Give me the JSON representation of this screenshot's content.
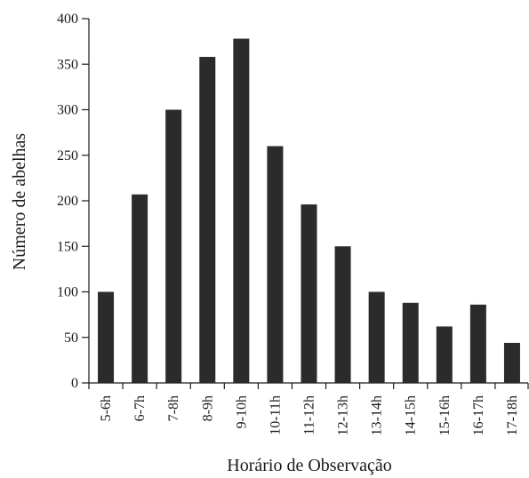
{
  "chart_data": {
    "type": "bar",
    "title": "",
    "xlabel": "Horário de Observação",
    "ylabel": "Número de abelhas",
    "categories": [
      "5-6h",
      "6-7h",
      "7-8h",
      "8-9h",
      "9-10h",
      "10-11h",
      "11-12h",
      "12-13h",
      "13-14h",
      "14-15h",
      "15-16h",
      "16-17h",
      "17-18h"
    ],
    "values": [
      100,
      207,
      300,
      358,
      378,
      260,
      196,
      150,
      100,
      88,
      62,
      86,
      44
    ],
    "ylim": [
      0,
      400
    ],
    "yticks": [
      "0",
      "50",
      "100",
      "150",
      "200",
      "250",
      "300",
      "350",
      "400"
    ],
    "grid": false,
    "bar_color": "#2b2b2b"
  }
}
